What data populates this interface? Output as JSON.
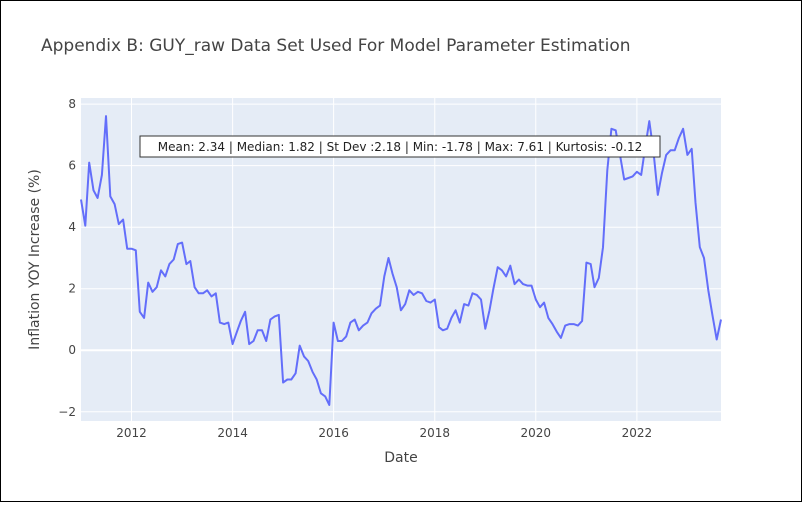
{
  "chart_data": {
    "type": "line",
    "title": "Appendix B: GUY_raw Data Set Used For Model Parameter Estimation",
    "xlabel": "Date",
    "ylabel": "Inflation YOY Increase (%)",
    "xlim": [
      "2011-01-01",
      "2023-09-01"
    ],
    "ylim": [
      -2.3,
      8.2
    ],
    "x_ticks": [
      {
        "date": "2012-01-01",
        "label": "2012"
      },
      {
        "date": "2014-01-01",
        "label": "2014"
      },
      {
        "date": "2016-01-01",
        "label": "2016"
      },
      {
        "date": "2018-01-01",
        "label": "2018"
      },
      {
        "date": "2020-01-01",
        "label": "2020"
      },
      {
        "date": "2022-01-01",
        "label": "2022"
      }
    ],
    "y_ticks": [
      {
        "value": -2,
        "label": "−2"
      },
      {
        "value": 0,
        "label": "0"
      },
      {
        "value": 2,
        "label": "2"
      },
      {
        "value": 4,
        "label": "4"
      },
      {
        "value": 6,
        "label": "6"
      },
      {
        "value": 8,
        "label": "8"
      }
    ],
    "grid": true,
    "plot_background": "#e5ecf6",
    "line_color": "#636efa",
    "annotation": "Mean: 2.34 | Median: 1.82 | St Dev :2.18 | Min: -1.78 | Max: 7.61 | Kurtosis: -0.12",
    "series": [
      {
        "x": [
          "2011-01",
          "2011-02",
          "2011-03",
          "2011-04",
          "2011-05",
          "2011-06",
          "2011-07",
          "2011-08",
          "2011-09",
          "2011-10",
          "2011-11",
          "2011-12",
          "2012-01",
          "2012-02",
          "2012-03",
          "2012-04",
          "2012-05",
          "2012-06",
          "2012-07",
          "2012-08",
          "2012-09",
          "2012-10",
          "2012-11",
          "2012-12",
          "2013-01",
          "2013-02",
          "2013-03",
          "2013-04",
          "2013-05",
          "2013-06",
          "2013-07",
          "2013-08",
          "2013-09",
          "2013-10",
          "2013-11",
          "2013-12",
          "2014-01",
          "2014-02",
          "2014-03",
          "2014-04",
          "2014-05",
          "2014-06",
          "2014-07",
          "2014-08",
          "2014-09",
          "2014-10",
          "2014-11",
          "2014-12",
          "2015-01",
          "2015-02",
          "2015-03",
          "2015-04",
          "2015-05",
          "2015-06",
          "2015-07",
          "2015-08",
          "2015-09",
          "2015-10",
          "2015-11",
          "2015-12",
          "2016-01",
          "2016-02",
          "2016-03",
          "2016-04",
          "2016-05",
          "2016-06",
          "2016-07",
          "2016-08",
          "2016-09",
          "2016-10",
          "2016-11",
          "2016-12",
          "2017-01",
          "2017-02",
          "2017-03",
          "2017-04",
          "2017-05",
          "2017-06",
          "2017-07",
          "2017-08",
          "2017-09",
          "2017-10",
          "2017-11",
          "2017-12",
          "2018-01",
          "2018-02",
          "2018-03",
          "2018-04",
          "2018-05",
          "2018-06",
          "2018-07",
          "2018-08",
          "2018-09",
          "2018-10",
          "2018-11",
          "2018-12",
          "2019-01",
          "2019-02",
          "2019-03",
          "2019-04",
          "2019-05",
          "2019-06",
          "2019-07",
          "2019-08",
          "2019-09",
          "2019-10",
          "2019-11",
          "2019-12",
          "2020-01",
          "2020-02",
          "2020-03",
          "2020-04",
          "2020-05",
          "2020-06",
          "2020-07",
          "2020-08",
          "2020-09",
          "2020-10",
          "2020-11",
          "2020-12",
          "2021-01",
          "2021-02",
          "2021-03",
          "2021-04",
          "2021-05",
          "2021-06",
          "2021-07",
          "2021-08",
          "2021-09",
          "2021-10",
          "2021-11",
          "2021-12",
          "2022-01",
          "2022-02",
          "2022-03",
          "2022-04",
          "2022-05",
          "2022-06",
          "2022-07",
          "2022-08",
          "2022-09",
          "2022-10",
          "2022-11",
          "2022-12",
          "2023-01",
          "2023-02",
          "2023-03",
          "2023-04",
          "2023-05",
          "2023-06",
          "2023-07",
          "2023-08",
          "2023-09"
        ],
        "y": [
          4.9,
          4.05,
          6.1,
          5.2,
          4.95,
          5.7,
          7.61,
          5.0,
          4.75,
          4.1,
          4.25,
          3.3,
          3.3,
          3.25,
          1.25,
          1.05,
          2.2,
          1.9,
          2.05,
          2.6,
          2.4,
          2.8,
          2.95,
          3.45,
          3.5,
          2.8,
          2.9,
          2.05,
          1.85,
          1.85,
          1.95,
          1.75,
          1.85,
          0.9,
          0.85,
          0.9,
          0.2,
          0.6,
          0.95,
          1.25,
          0.2,
          0.3,
          0.65,
          0.65,
          0.3,
          1.0,
          1.1,
          1.15,
          -1.05,
          -0.95,
          -0.95,
          -0.75,
          0.15,
          -0.2,
          -0.35,
          -0.7,
          -0.95,
          -1.4,
          -1.5,
          -1.78,
          0.9,
          0.3,
          0.3,
          0.45,
          0.9,
          1.0,
          0.65,
          0.8,
          0.9,
          1.2,
          1.35,
          1.45,
          2.4,
          3.0,
          2.5,
          2.05,
          1.3,
          1.5,
          1.95,
          1.8,
          1.9,
          1.85,
          1.6,
          1.55,
          1.65,
          0.75,
          0.65,
          0.7,
          1.05,
          1.3,
          0.9,
          1.5,
          1.45,
          1.85,
          1.8,
          1.65,
          0.7,
          1.3,
          2.0,
          2.7,
          2.6,
          2.4,
          2.75,
          2.15,
          2.3,
          2.15,
          2.1,
          2.1,
          1.65,
          1.4,
          1.55,
          1.05,
          0.85,
          0.6,
          0.4,
          0.8,
          0.85,
          0.85,
          0.8,
          0.95,
          2.85,
          2.8,
          2.05,
          2.35,
          3.35,
          5.85,
          7.2,
          7.15,
          6.35,
          5.55,
          5.6,
          5.65,
          5.8,
          5.7,
          6.55,
          7.45,
          6.45,
          5.05,
          5.75,
          6.35,
          6.5,
          6.5,
          6.9,
          7.2,
          6.35,
          6.55,
          4.8,
          3.35,
          3.0,
          1.95,
          1.15,
          0.35,
          1.0
        ]
      }
    ]
  }
}
